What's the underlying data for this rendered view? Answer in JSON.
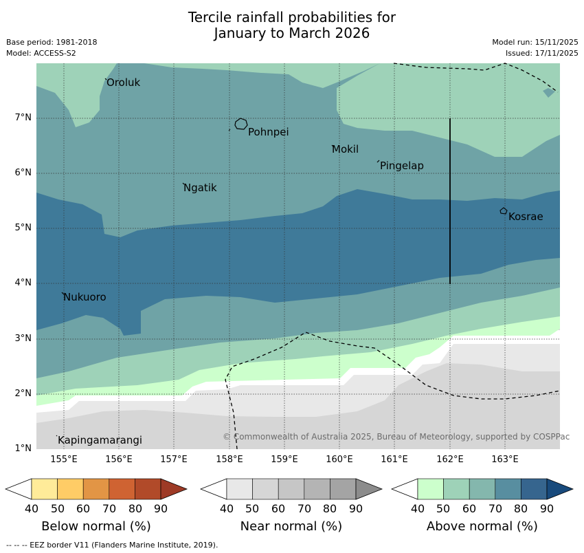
{
  "title_line1": "Tercile rainfall probabilities for",
  "title_line2": "January to March 2026",
  "meta": {
    "base_period": "Base period: 1981-2018",
    "model": "Model: ACCESS-S2",
    "model_run": "Model run: 15/11/2025",
    "issued": "Issued: 17/11/2025"
  },
  "axes": {
    "lat_labels": [
      "7°N",
      "6°N",
      "5°N",
      "4°N",
      "3°N",
      "2°N",
      "1°N"
    ],
    "lon_labels": [
      "155°E",
      "156°E",
      "157°E",
      "158°E",
      "159°E",
      "160°E",
      "161°E",
      "162°E",
      "163°E"
    ]
  },
  "places": {
    "oroluk": "Oroluk",
    "pohnpei": "Pohnpei",
    "mokil": "Mokil",
    "pingelap": "Pingelap",
    "ngatik": "Ngatik",
    "kosrae": "Kosrae",
    "nukuoro": "Nukuoro",
    "kapingamarangi": "Kapingamarangi"
  },
  "credit": "© Commonwealth of Australia 2025, Bureau of Meteorology, supported by COSPPac",
  "colorbars": {
    "below": {
      "label": "Below normal (%)",
      "ticks": [
        "40",
        "50",
        "60",
        "70",
        "80",
        "90"
      ],
      "colors": [
        "#ffeb99",
        "#ffcc66",
        "#e29545",
        "#cf6332",
        "#b14a29",
        "#9e3a26"
      ]
    },
    "near": {
      "label": "Near normal (%)",
      "ticks": [
        "40",
        "50",
        "60",
        "70",
        "80",
        "90"
      ],
      "colors": [
        "#e8e8e8",
        "#d6d6d6",
        "#c6c6c6",
        "#b4b4b4",
        "#a4a4a4",
        "#8c8c8c"
      ]
    },
    "above": {
      "label": "Above normal (%)",
      "ticks": [
        "40",
        "50",
        "60",
        "70",
        "80",
        "90"
      ],
      "colors": [
        "#ccffcc",
        "#9ed2b8",
        "#84b7ad",
        "#588ea0",
        "#36658e",
        "#184a7c"
      ]
    }
  },
  "eez_note": "--  --  -- EEZ border V11 (Flanders Marine Institute, 2019)."
}
